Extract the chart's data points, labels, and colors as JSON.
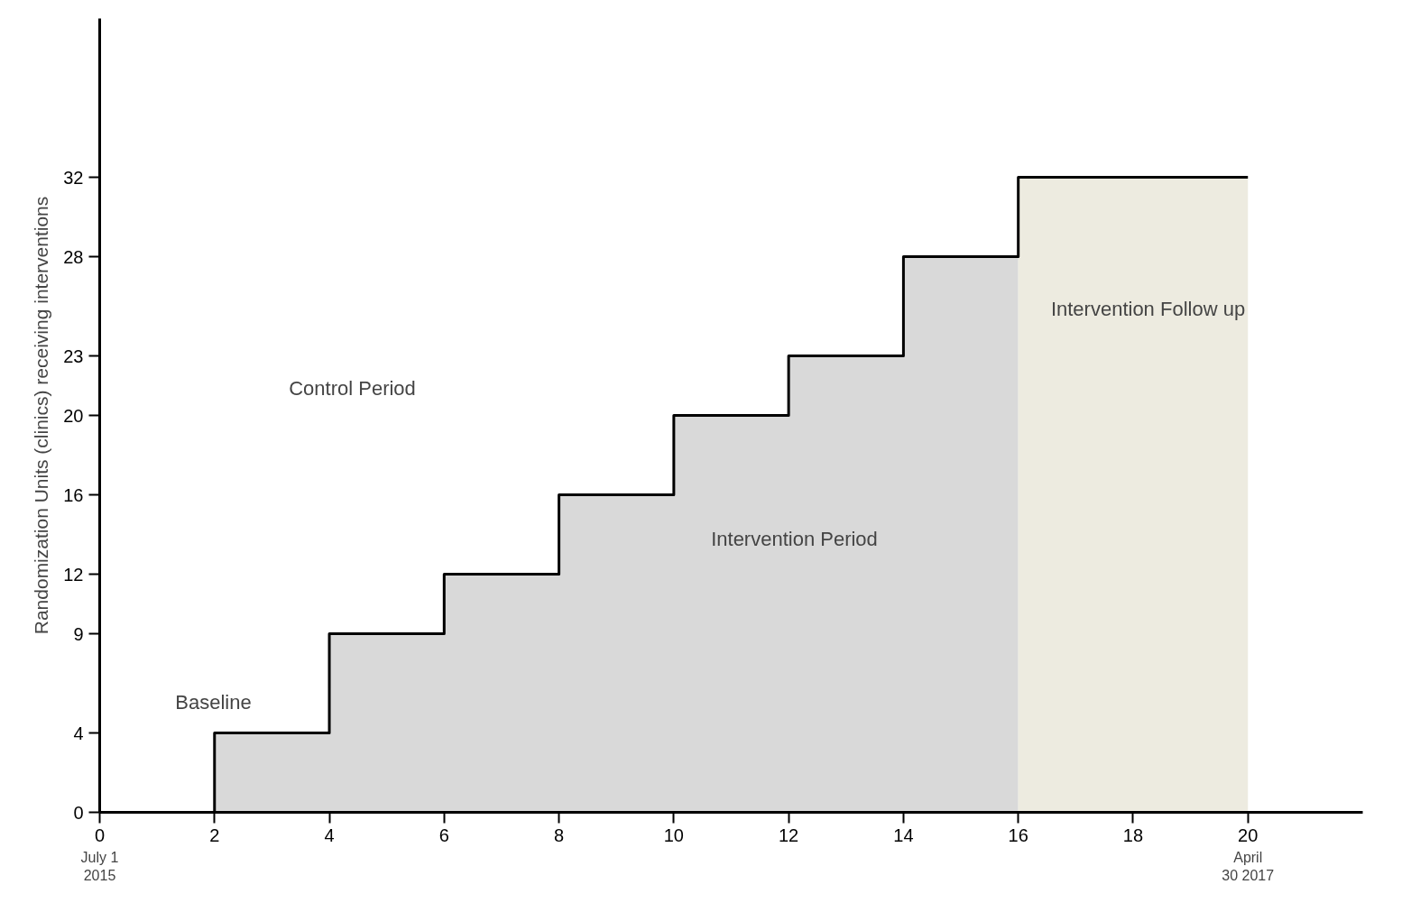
{
  "chart_data": {
    "type": "step",
    "ylabel": "Randomization Units (clinics) receiving interventions",
    "x": [
      0,
      2,
      4,
      6,
      8,
      10,
      12,
      14,
      16,
      20
    ],
    "series": [
      {
        "type": "area",
        "color": "#d9d9d9",
        "x": [
          2,
          2,
          4,
          4,
          6,
          6,
          8,
          8,
          10,
          10,
          12,
          12,
          14,
          14,
          16
        ],
        "values": [
          0,
          4,
          4,
          9,
          9,
          12,
          12,
          16,
          16,
          20,
          20,
          23,
          23,
          28,
          28
        ]
      },
      {
        "type": "area",
        "color": "#edebe0",
        "x": [
          16,
          20
        ],
        "values": [
          32,
          32
        ]
      },
      {
        "color": "#000000",
        "values": [
          0,
          4,
          9,
          12,
          16,
          20,
          23,
          28,
          32,
          32
        ]
      }
    ],
    "xlim": [
      0,
      22
    ],
    "ylim": [
      0,
      40
    ],
    "xticks": [
      0,
      2,
      4,
      6,
      8,
      10,
      12,
      14,
      16,
      18,
      20
    ],
    "yticks": [
      0,
      4,
      9,
      12,
      16,
      20,
      23,
      28,
      32
    ],
    "grid": false,
    "annotations": [
      "Baseline",
      "Control Period",
      "Intervention Period",
      "Intervention Follow up",
      "July 1\n2015",
      "April\n30 2017"
    ]
  }
}
